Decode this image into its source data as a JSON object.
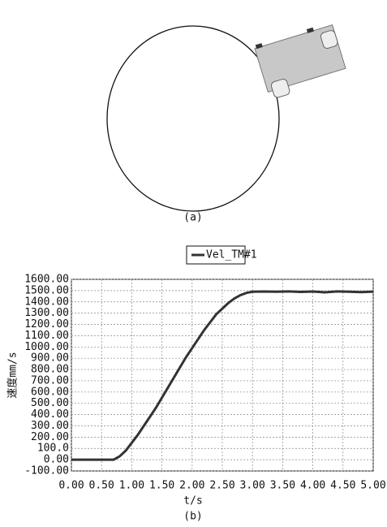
{
  "caption_a": "(a)",
  "chart_data": {
    "type": "line",
    "legend_title": null,
    "x_label": "t/s",
    "y_label": "速度mm/s",
    "caption": "(b)",
    "x": [
      0,
      0.1,
      0.2,
      0.3,
      0.4,
      0.5,
      0.6,
      0.7,
      0.8,
      0.9,
      1.0,
      1.1,
      1.2,
      1.3,
      1.4,
      1.5,
      1.6,
      1.7,
      1.8,
      1.9,
      2.0,
      2.1,
      2.2,
      2.3,
      2.4,
      2.5,
      2.6,
      2.7,
      2.8,
      2.9,
      3.0,
      3.2,
      3.4,
      3.6,
      3.8,
      4.0,
      4.2,
      4.4,
      4.6,
      4.8,
      5.0
    ],
    "series": [
      {
        "name": "Vel_TM#1",
        "color": "#333333",
        "values": [
          0,
          0,
          0,
          0,
          0,
          0,
          0,
          0,
          30,
          80,
          150,
          220,
          300,
          380,
          460,
          550,
          640,
          730,
          820,
          910,
          990,
          1070,
          1150,
          1220,
          1290,
          1340,
          1390,
          1430,
          1460,
          1480,
          1490,
          1492,
          1490,
          1493,
          1488,
          1492,
          1485,
          1493,
          1490,
          1487,
          1491
        ]
      }
    ],
    "xlim": [
      0,
      5
    ],
    "ylim": [
      -100,
      1600
    ],
    "xticks": [
      {
        "value": 0,
        "label": "0.00"
      },
      {
        "value": 0.5,
        "label": "0.50"
      },
      {
        "value": 1,
        "label": "1.00"
      },
      {
        "value": 1.5,
        "label": "1.50"
      },
      {
        "value": 2,
        "label": "2.00"
      },
      {
        "value": 2.5,
        "label": "2.50"
      },
      {
        "value": 3,
        "label": "3.00"
      },
      {
        "value": 3.5,
        "label": "3.50"
      },
      {
        "value": 4,
        "label": "4.00"
      },
      {
        "value": 4.5,
        "label": "4.50"
      },
      {
        "value": 5,
        "label": "5.00"
      }
    ],
    "yticks": [
      {
        "value": 1600,
        "label": "1600.00"
      },
      {
        "value": 1500,
        "label": "1500.00"
      },
      {
        "value": 1400,
        "label": "1400.00"
      },
      {
        "value": 1300,
        "label": "1300.00"
      },
      {
        "value": 1200,
        "label": "1200.00"
      },
      {
        "value": 1100,
        "label": "1100.00"
      },
      {
        "value": 1000,
        "label": "1000.00"
      },
      {
        "value": 900,
        "label": "900.00"
      },
      {
        "value": 800,
        "label": "800.00"
      },
      {
        "value": 700,
        "label": "700.00"
      },
      {
        "value": 600,
        "label": "600.00"
      },
      {
        "value": 500,
        "label": "500.00"
      },
      {
        "value": 400,
        "label": "400.00"
      },
      {
        "value": 300,
        "label": "300.00"
      },
      {
        "value": 200,
        "label": "200.00"
      },
      {
        "value": 100,
        "label": "100.0"
      },
      {
        "value": 0,
        "label": "0.00"
      },
      {
        "value": -100,
        "label": "-100.00"
      }
    ],
    "grid": true
  }
}
